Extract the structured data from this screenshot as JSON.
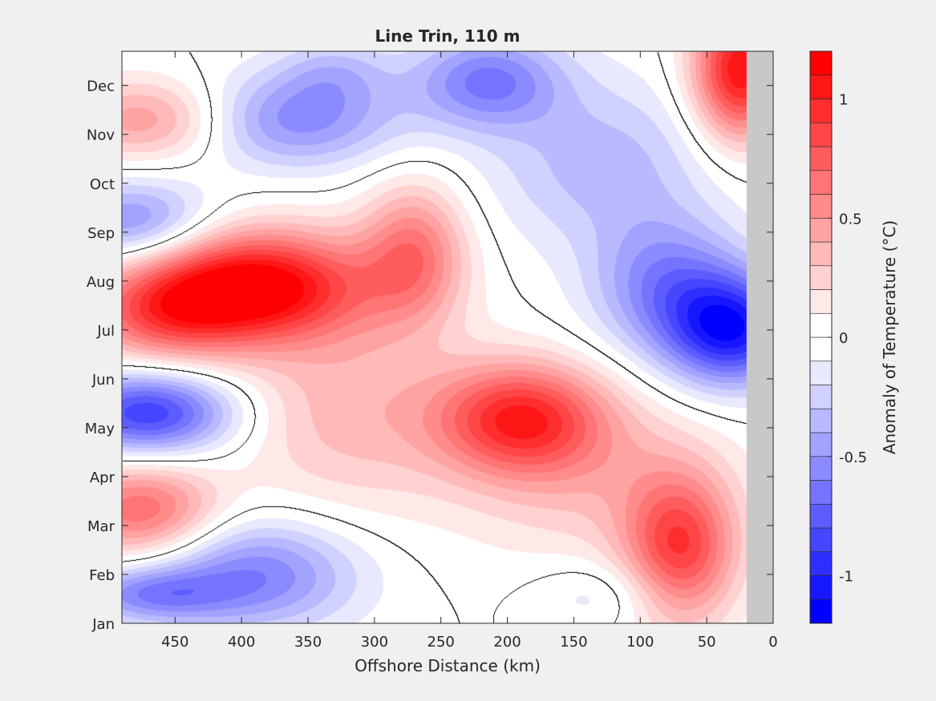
{
  "chart_data": {
    "type": "heatmap",
    "subtype": "filled-contour",
    "title": "Line Trin, 110 m",
    "xlabel": "Offshore Distance (km)",
    "ylabel": "",
    "x_direction": "reversed",
    "xlim": [
      0,
      490
    ],
    "x_ticks": [
      {
        "value": 450,
        "label": "450"
      },
      {
        "value": 400,
        "label": "400"
      },
      {
        "value": 350,
        "label": "350"
      },
      {
        "value": 300,
        "label": "300"
      },
      {
        "value": 250,
        "label": "250"
      },
      {
        "value": 200,
        "label": "200"
      },
      {
        "value": 150,
        "label": "150"
      },
      {
        "value": 100,
        "label": "100"
      },
      {
        "value": 50,
        "label": "50"
      },
      {
        "value": 0,
        "label": "0"
      }
    ],
    "ylim": [
      0,
      11.7
    ],
    "y_ticks": [
      {
        "value": 0,
        "label": "Jan"
      },
      {
        "value": 1,
        "label": "Feb"
      },
      {
        "value": 2,
        "label": "Mar"
      },
      {
        "value": 3,
        "label": "Apr"
      },
      {
        "value": 4,
        "label": "May"
      },
      {
        "value": 5,
        "label": "Jun"
      },
      {
        "value": 6,
        "label": "Jul"
      },
      {
        "value": 7,
        "label": "Aug"
      },
      {
        "value": 8,
        "label": "Sep"
      },
      {
        "value": 9,
        "label": "Oct"
      },
      {
        "value": 10,
        "label": "Nov"
      },
      {
        "value": 11,
        "label": "Dec"
      }
    ],
    "no_data_x_range": [
      0,
      20
    ],
    "no_data_color": "#c8c8c8",
    "zero_contour_color": "#000000",
    "colorbar": {
      "label": "Anomaly of Temperature (°C)",
      "clim": [
        -1.2,
        1.2
      ],
      "step": 0.1,
      "ticks": [
        {
          "value": 1,
          "label": "1"
        },
        {
          "value": 0.5,
          "label": "0.5"
        },
        {
          "value": 0,
          "label": "0"
        },
        {
          "value": -0.5,
          "label": "-0.5"
        },
        {
          "value": -1,
          "label": "-1"
        }
      ],
      "positive_color": "#ff0000",
      "negative_color": "#0000ff",
      "neutral_color": "#ffffff"
    },
    "anomaly_centers": [
      {
        "x": 390,
        "y": 6.9,
        "value": 1.2,
        "sx": 60,
        "sy": 0.8
      },
      {
        "x": 460,
        "y": 6.3,
        "value": 0.6,
        "sx": 45,
        "sy": 0.7
      },
      {
        "x": 270,
        "y": 7.6,
        "value": 0.6,
        "sx": 28,
        "sy": 1.0
      },
      {
        "x": 190,
        "y": 4.2,
        "value": 0.9,
        "sx": 45,
        "sy": 0.8
      },
      {
        "x": 320,
        "y": 4.4,
        "value": 0.35,
        "sx": 60,
        "sy": 1.5
      },
      {
        "x": 70,
        "y": 1.5,
        "value": 0.85,
        "sx": 30,
        "sy": 1.1
      },
      {
        "x": 25,
        "y": 11.3,
        "value": 1.1,
        "sx": 25,
        "sy": 1.0
      },
      {
        "x": 470,
        "y": 10.3,
        "value": 0.5,
        "sx": 45,
        "sy": 0.6
      },
      {
        "x": 475,
        "y": 2.3,
        "value": 0.7,
        "sx": 40,
        "sy": 0.7
      },
      {
        "x": 140,
        "y": 3.0,
        "value": 0.3,
        "sx": 70,
        "sy": 1.2
      },
      {
        "x": 470,
        "y": 4.3,
        "value": -0.9,
        "sx": 45,
        "sy": 0.6
      },
      {
        "x": 360,
        "y": 10.3,
        "value": -0.55,
        "sx": 55,
        "sy": 0.7
      },
      {
        "x": 215,
        "y": 11.1,
        "value": -0.6,
        "sx": 40,
        "sy": 0.7
      },
      {
        "x": 30,
        "y": 6.0,
        "value": -1.0,
        "sx": 35,
        "sy": 0.8
      },
      {
        "x": 80,
        "y": 6.9,
        "value": -0.55,
        "sx": 40,
        "sy": 1.0
      },
      {
        "x": 390,
        "y": 1.0,
        "value": -0.6,
        "sx": 55,
        "sy": 0.8
      },
      {
        "x": 480,
        "y": 8.2,
        "value": -0.55,
        "sx": 40,
        "sy": 0.6
      },
      {
        "x": 470,
        "y": 0.6,
        "value": -0.5,
        "sx": 40,
        "sy": 0.4
      },
      {
        "x": 130,
        "y": 9.4,
        "value": -0.35,
        "sx": 60,
        "sy": 1.2
      },
      {
        "x": 330,
        "y": 11.3,
        "value": -0.25,
        "sx": 30,
        "sy": 0.5
      },
      {
        "x": 120,
        "y": 0.6,
        "value": -0.2,
        "sx": 40,
        "sy": 0.5
      }
    ]
  }
}
